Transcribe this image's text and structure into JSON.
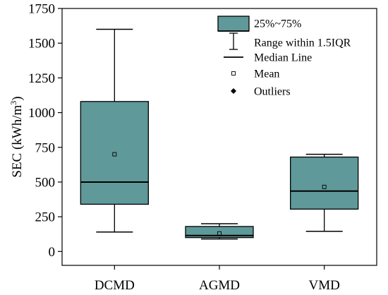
{
  "chart_data": {
    "type": "box",
    "title": "",
    "xlabel": "",
    "ylabel": "SEC (kWh/m",
    "ylabel_sup": "3",
    "ylabel_close": ")",
    "ylim": [
      -100,
      1750
    ],
    "yticks": [
      0,
      250,
      500,
      750,
      1000,
      1250,
      1500,
      1750
    ],
    "ytick_labels": [
      "0",
      "250",
      "500",
      "750",
      "1000",
      "1250",
      "1500",
      "1750"
    ],
    "grid": false,
    "legend_position": "top-right",
    "categories": [
      "DCMD",
      "AGMD",
      "VMD"
    ],
    "boxes": [
      {
        "category": "DCMD",
        "whisker_low": 140,
        "q1": 340,
        "median": 500,
        "q3": 1080,
        "whisker_high": 1600,
        "mean": 700
      },
      {
        "category": "AGMD",
        "whisker_low": 90,
        "q1": 100,
        "median": 115,
        "q3": 180,
        "whisker_high": 200,
        "mean": 130
      },
      {
        "category": "VMD",
        "whisker_low": 145,
        "q1": 305,
        "median": 435,
        "q3": 680,
        "whisker_high": 700,
        "mean": 465
      }
    ],
    "legend": [
      {
        "key": "box",
        "label": "25%~75%"
      },
      {
        "key": "range",
        "label": "Range within 1.5IQR"
      },
      {
        "key": "median",
        "label": "Median Line"
      },
      {
        "key": "mean",
        "label": "Mean"
      },
      {
        "key": "outliers",
        "label": "Outliers"
      }
    ],
    "colors": {
      "box_fill": "#5f9999",
      "stroke": "#000000",
      "background": "#ffffff"
    }
  }
}
